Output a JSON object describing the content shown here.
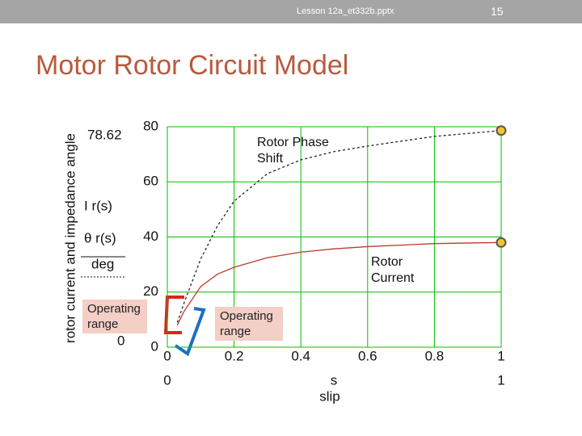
{
  "header": {
    "file": "Lesson 12a_et332b.pptx",
    "page": "15"
  },
  "title": "Motor Rotor Circuit Model",
  "chart_data": {
    "type": "line",
    "y_label": "rotor current and impedance angle",
    "x_symbol": "s",
    "x_label": "slip",
    "x_limit_labels": [
      "0",
      "1"
    ],
    "y_limit_labels": [
      "78.62",
      "0"
    ],
    "x": [
      0.03,
      0.05,
      0.1,
      0.15,
      0.2,
      0.3,
      0.4,
      0.5,
      0.6,
      0.8,
      1
    ],
    "series": [
      {
        "name": "I r(s)",
        "color": "#c0392b",
        "dashed": false,
        "values": [
          8,
          13,
          22,
          26.5,
          29,
          32.5,
          34.5,
          35.7,
          36.5,
          37.6,
          38
        ]
      },
      {
        "name": "θ r(s)",
        "unit": "deg",
        "color": "#222222",
        "dashed": true,
        "values": [
          9,
          16,
          32,
          44,
          53,
          63,
          68,
          71,
          73,
          76.5,
          78.62
        ]
      }
    ],
    "annotations": [
      "Rotor Phase Shift",
      "Rotor Current",
      "Operating range",
      "Operating range"
    ],
    "xlim": [
      0,
      1
    ],
    "ylim": [
      0,
      80
    ],
    "xticks": [
      0,
      0.2,
      0.4,
      0.6,
      0.8,
      1
    ],
    "yticks": [
      0,
      20,
      40,
      60,
      80
    ],
    "grid": true,
    "grid_color": "#00c000",
    "marker_color": "#f2c230"
  }
}
